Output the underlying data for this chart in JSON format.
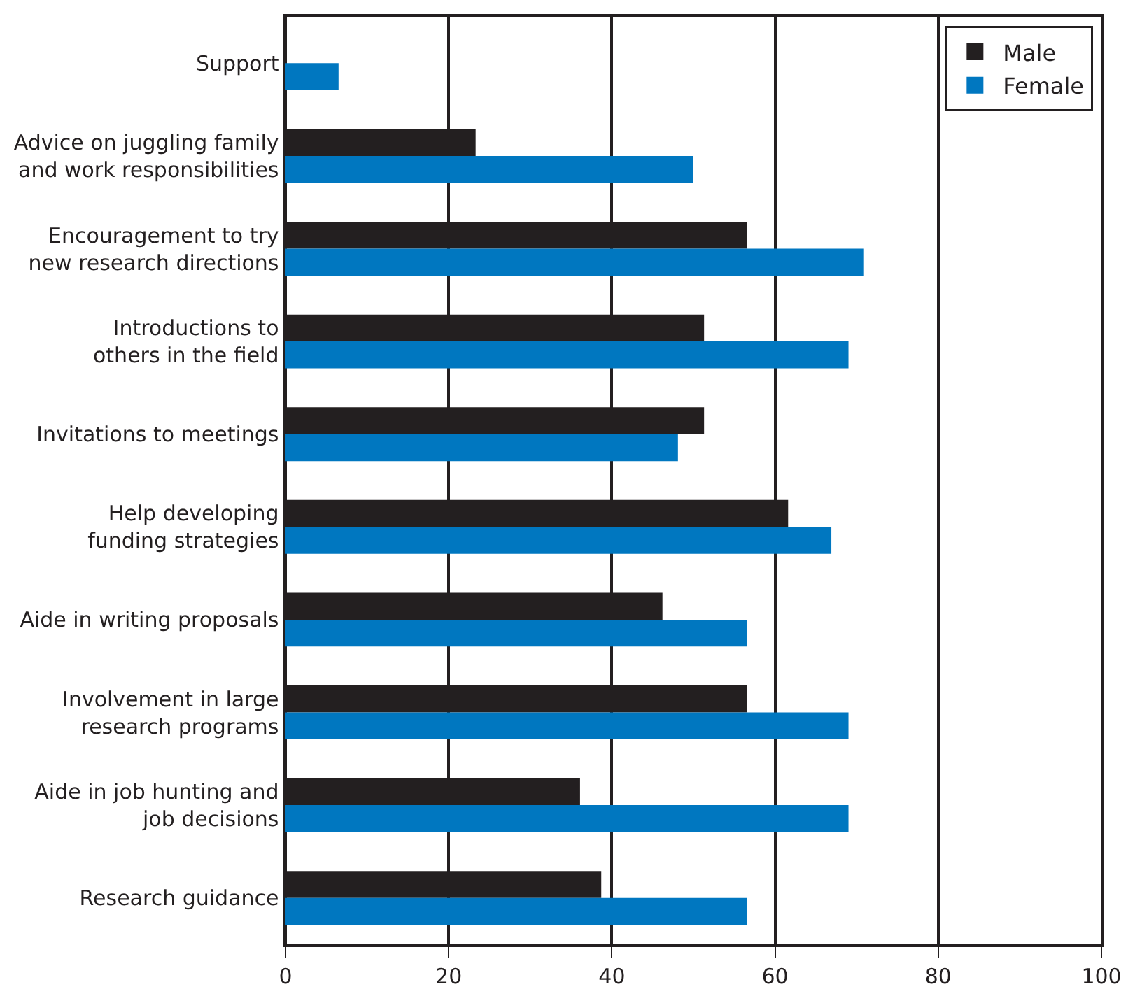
{
  "chart_data": {
    "type": "bar",
    "orientation": "horizontal",
    "categories": [
      "Support",
      "Advice on juggling family\nand work responsibilities",
      "Encouragement to try\nnew research directions",
      "Introductions to\nothers in the field",
      "Invitations to meetings",
      "Help developing\nfunding strategies",
      "Aide in writing proposals",
      "Involvement in large\nresearch programs",
      "Aide in job hunting and\njob decisions",
      "Research guidance"
    ],
    "series": [
      {
        "name": "Male",
        "color": "#231f20",
        "values": [
          null,
          23.3,
          56.6,
          51.3,
          51.3,
          61.6,
          46.2,
          56.6,
          36.1,
          38.7
        ]
      },
      {
        "name": "Female",
        "color": "#0077c0",
        "values": [
          6.5,
          50.0,
          70.9,
          69.0,
          48.1,
          66.9,
          56.6,
          69.0,
          69.0,
          56.6
        ]
      }
    ],
    "xlim": [
      0,
      100
    ],
    "xticks": [
      0,
      20,
      40,
      60,
      80,
      100
    ],
    "grid": "x",
    "legend": "top right"
  }
}
